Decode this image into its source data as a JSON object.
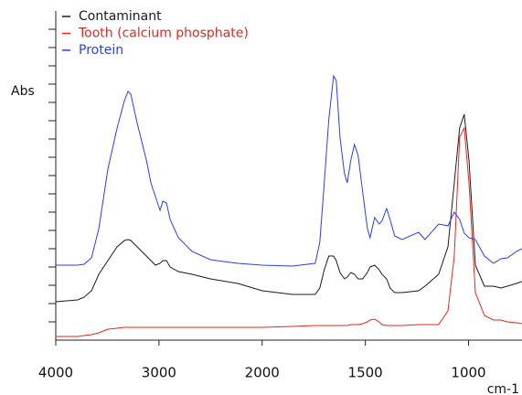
{
  "chart_data": {
    "type": "line",
    "ylabel": "Abs",
    "xlabel": "cm-1",
    "x": [
      4000,
      3787,
      3725,
      3654,
      3583,
      3495,
      3406,
      3335,
      3300,
      3273,
      3211,
      3122,
      3078,
      3034,
      2989,
      2963,
      2927,
      2892,
      2812,
      2679,
      2502,
      2236,
      2000,
      1854,
      1743,
      1721,
      1699,
      1677,
      1654,
      1641,
      1623,
      1601,
      1588,
      1570,
      1553,
      1535,
      1513,
      1490,
      1477,
      1455,
      1433,
      1420,
      1397,
      1380,
      1358,
      1322,
      1242,
      1211,
      1145,
      1100,
      1069,
      1043,
      1021,
      998,
      967,
      923,
      879,
      843,
      812,
      768,
      741
    ],
    "series": [
      {
        "name": "Contaminant",
        "color": "#1a1a1a",
        "values": [
          0.42,
          0.44,
          0.47,
          0.54,
          0.72,
          0.87,
          1.02,
          1.09,
          1.1,
          1.09,
          1.02,
          0.92,
          0.87,
          0.82,
          0.84,
          0.87,
          0.87,
          0.8,
          0.75,
          0.72,
          0.67,
          0.62,
          0.54,
          0.5,
          0.5,
          0.57,
          0.77,
          0.92,
          0.92,
          0.87,
          0.74,
          0.67,
          0.69,
          0.74,
          0.72,
          0.67,
          0.67,
          0.74,
          0.8,
          0.82,
          0.77,
          0.72,
          0.67,
          0.57,
          0.52,
          0.52,
          0.54,
          0.59,
          0.72,
          1.02,
          1.72,
          2.32,
          2.47,
          1.97,
          0.82,
          0.59,
          0.59,
          0.57,
          0.59,
          0.62,
          0.64
        ]
      },
      {
        "name": "Tooth (calcium phosphate)",
        "color": "#e8261e",
        "values": [
          0.04,
          0.04,
          0.05,
          0.06,
          0.08,
          0.12,
          0.13,
          0.14,
          0.14,
          0.14,
          0.14,
          0.14,
          0.14,
          0.14,
          0.14,
          0.14,
          0.14,
          0.14,
          0.14,
          0.14,
          0.14,
          0.14,
          0.14,
          0.15,
          0.16,
          0.16,
          0.16,
          0.16,
          0.16,
          0.16,
          0.16,
          0.16,
          0.16,
          0.17,
          0.17,
          0.17,
          0.18,
          0.2,
          0.22,
          0.23,
          0.2,
          0.17,
          0.16,
          0.16,
          0.16,
          0.16,
          0.17,
          0.17,
          0.17,
          0.32,
          0.92,
          2.22,
          2.32,
          1.72,
          0.52,
          0.27,
          0.22,
          0.22,
          0.2,
          0.19,
          0.18
        ]
      },
      {
        "name": "Protein",
        "color": "#2a3ee8",
        "values": [
          0.82,
          0.82,
          0.83,
          0.9,
          1.22,
          1.87,
          2.32,
          2.62,
          2.72,
          2.69,
          2.37,
          1.97,
          1.72,
          1.57,
          1.42,
          1.52,
          1.5,
          1.32,
          1.12,
          0.97,
          0.88,
          0.84,
          0.82,
          0.81,
          0.84,
          1.07,
          1.72,
          2.42,
          2.89,
          2.84,
          2.22,
          1.82,
          1.72,
          1.97,
          2.14,
          2.02,
          1.62,
          1.22,
          1.12,
          1.34,
          1.27,
          1.3,
          1.44,
          1.32,
          1.14,
          1.1,
          1.18,
          1.1,
          1.27,
          1.25,
          1.4,
          1.32,
          1.17,
          1.12,
          1.1,
          0.92,
          0.84,
          0.89,
          0.9,
          0.97,
          1.0
        ]
      }
    ],
    "xlim": [
      4000,
      741
    ],
    "xticks": [
      4000,
      3000,
      2000,
      1500,
      1000
    ],
    "x_scale_break": 2000,
    "x_expand_below_break": 2,
    "ylim": [
      0,
      3.6
    ],
    "yticks": [
      0.2,
      0.4,
      0.6,
      0.8,
      1.0,
      1.2,
      1.4,
      1.6,
      1.8,
      2.0,
      2.2,
      2.4,
      2.6,
      2.8,
      3.0,
      3.2,
      3.4
    ],
    "grid": false,
    "legend": "upper left"
  }
}
